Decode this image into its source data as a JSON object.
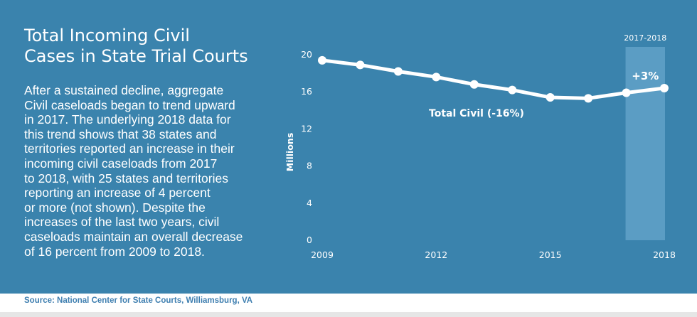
{
  "title": "Total Incoming Civil\nCases in State Trial Courts",
  "body": "After a sustained decline, aggregate\nCivil caseloads began to trend upward\nin 2017.  The underlying 2018 data for\nthis trend shows that 38 states and\nterritories reported an increase in their\nincoming civil caseloads from 2017\nto 2018, with 25 states and territories\nreporting an increase of 4 percent\nor more (not shown). Despite the\nincreases of the last two years, civil\ncaseloads maintain an overall decrease\nof 16 percent from 2009 to 2018.",
  "source": "Source: National Center for State Courts, Williamsburg, VA",
  "colors": {
    "background": "#3a83ad",
    "line": "#ffffff",
    "highlight": "#5b9dc4",
    "source_text": "#3f7fb0"
  },
  "chart_data": {
    "type": "line",
    "ylabel": "Millions",
    "xlabel": "",
    "ylim": [
      0,
      20
    ],
    "xlim": [
      2009,
      2018
    ],
    "yticks": [
      0,
      4,
      8,
      12,
      16,
      20
    ],
    "xticks": [
      2009,
      2012,
      2015,
      2018
    ],
    "grid": false,
    "series": [
      {
        "name": "Total Civil (-16%)",
        "x": [
          2009,
          2010,
          2011,
          2012,
          2013,
          2014,
          2015,
          2016,
          2017,
          2018
        ],
        "values": [
          19.4,
          18.9,
          18.2,
          17.6,
          16.8,
          16.2,
          15.4,
          15.3,
          15.9,
          16.4
        ]
      }
    ],
    "highlight": {
      "from": 2017,
      "to": 2018,
      "label": "2017-2018",
      "annotation": "+3%"
    }
  }
}
